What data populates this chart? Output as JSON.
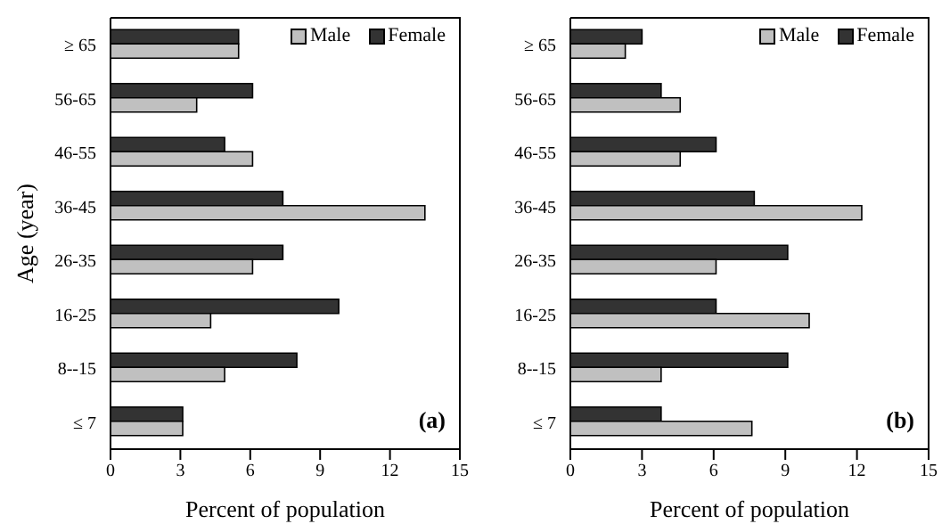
{
  "chart_data": [
    {
      "type": "bar",
      "orientation": "horizontal",
      "ylabel": "Age (year)",
      "xlabel": "Percent of population",
      "categories": [
        "≥ 65",
        "56-65",
        "46-55",
        "36-45",
        "26-35",
        "16-25",
        "8--15",
        "≤ 7"
      ],
      "series": [
        {
          "name": "Male",
          "color": "#c0c0c0",
          "values": [
            5.5,
            3.7,
            6.1,
            13.5,
            6.1,
            4.3,
            4.9,
            3.1
          ]
        },
        {
          "name": "Female",
          "color": "#333333",
          "values": [
            5.5,
            6.1,
            4.9,
            7.4,
            7.4,
            9.8,
            8.0,
            3.1
          ]
        }
      ],
      "xlim": [
        0,
        15
      ],
      "xticks": [
        0,
        3,
        6,
        9,
        12,
        15
      ],
      "legend": "top right",
      "grid": false,
      "annotations": [
        "(a)"
      ]
    },
    {
      "type": "bar",
      "orientation": "horizontal",
      "xlabel": "Percent of population",
      "categories": [
        "≥ 65",
        "56-65",
        "46-55",
        "36-45",
        "26-35",
        "16-25",
        "8--15",
        "≤ 7"
      ],
      "series": [
        {
          "name": "Male",
          "color": "#c0c0c0",
          "values": [
            2.3,
            4.6,
            4.6,
            12.2,
            6.1,
            10.0,
            3.8,
            7.6
          ]
        },
        {
          "name": "Female",
          "color": "#333333",
          "values": [
            3.0,
            3.8,
            6.1,
            7.7,
            9.1,
            6.1,
            9.1,
            3.8
          ]
        }
      ],
      "xlim": [
        0,
        15
      ],
      "xticks": [
        0,
        3,
        6,
        9,
        12,
        15
      ],
      "legend": "top right",
      "grid": false,
      "annotations": [
        "(b)"
      ]
    }
  ]
}
